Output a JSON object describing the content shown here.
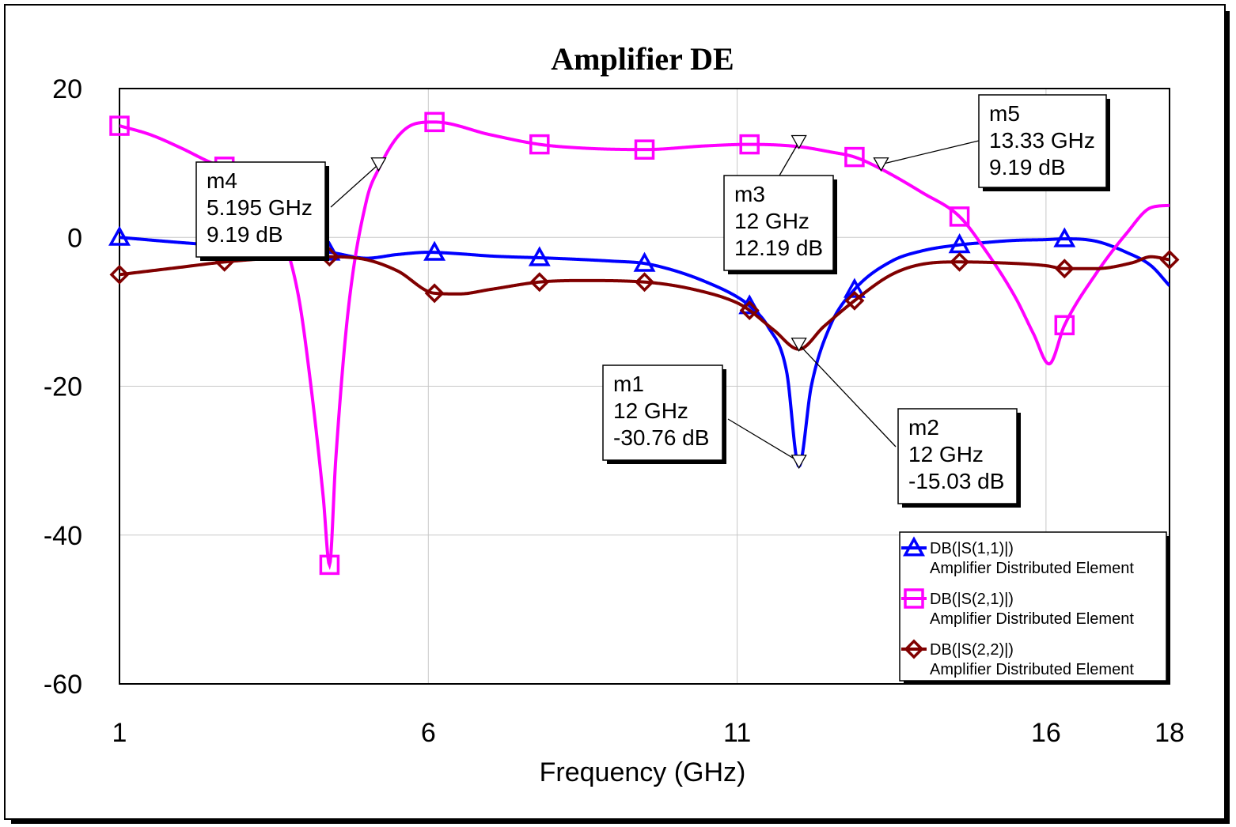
{
  "chart_data": {
    "type": "line",
    "title": "Amplifier DE",
    "xlabel": "Frequency (GHz)",
    "ylabel": "",
    "xlim": [
      1,
      18
    ],
    "ylim": [
      -60,
      20
    ],
    "xticks": [
      1,
      6,
      11,
      16,
      18
    ],
    "yticks": [
      20,
      0,
      -20,
      -40,
      -60
    ],
    "grid": true,
    "legend_position": "bottom-right",
    "series": [
      {
        "name": "DB(|S(1,1)|)",
        "subname": "Amplifier Distributed Element",
        "color": "#0000ff",
        "marker": "triangle",
        "markers_x": [
          1,
          2.7,
          4.4,
          6.1,
          7.8,
          9.5,
          11.2,
          12.9,
          14.6,
          16.3
        ],
        "x": [
          1,
          2,
          3,
          4,
          4.4,
          5,
          5.5,
          6,
          6.5,
          7,
          8,
          9,
          9.5,
          10,
          10.5,
          11,
          11.2,
          11.5,
          11.8,
          12,
          12.2,
          12.5,
          12.9,
          13.5,
          14,
          14.6,
          15,
          15.5,
          16,
          16.3,
          16.8,
          17.3,
          17.7,
          18
        ],
        "y": [
          0,
          -0.7,
          -1.3,
          -1.8,
          -2,
          -2.8,
          -2.3,
          -2,
          -2.2,
          -2.5,
          -2.8,
          -3.2,
          -3.5,
          -4.5,
          -6,
          -8,
          -9.2,
          -12,
          -18,
          -30.76,
          -20,
          -12,
          -7,
          -3.2,
          -1.8,
          -1,
          -0.7,
          -0.4,
          -0.3,
          -0.2,
          -0.5,
          -2,
          -3.8,
          -6.5
        ]
      },
      {
        "name": "DB(|S(2,1)|)",
        "subname": "Amplifier Distributed Element",
        "color": "#ff00ff",
        "marker": "square",
        "markers_x": [
          1,
          2.7,
          4.4,
          6.1,
          7.8,
          9.5,
          11.2,
          12.9,
          14.6,
          16.3
        ],
        "x": [
          1,
          1.5,
          2,
          2.5,
          2.7,
          3.2,
          3.6,
          3.9,
          4.1,
          4.3,
          4.4,
          4.5,
          4.7,
          5,
          5.195,
          5.5,
          5.8,
          6.1,
          7,
          7.8,
          8.5,
          9.5,
          10.5,
          11.2,
          12,
          12.5,
          12.9,
          13.33,
          14,
          14.6,
          15,
          15.5,
          15.8,
          16.05,
          16.3,
          16.8,
          17.3,
          17.7,
          18
        ],
        "y": [
          15,
          13.8,
          12,
          10,
          9.5,
          6,
          1,
          -8,
          -20,
          -35,
          -44,
          -30,
          -10,
          5,
          9.19,
          13.5,
          15.3,
          15.5,
          13.8,
          12.5,
          12,
          11.8,
          12.3,
          12.5,
          12.19,
          11.5,
          10.8,
          9.19,
          6,
          2.8,
          -1.5,
          -8,
          -13,
          -17,
          -11.8,
          -5,
          0.5,
          4,
          4.3
        ]
      },
      {
        "name": "DB(|S(2,2)|)",
        "subname": "Amplifier Distributed Element",
        "color": "#800000",
        "marker": "diamond",
        "markers_x": [
          1,
          2.7,
          4.4,
          6.1,
          7.8,
          9.5,
          11.2,
          12.9,
          14.6,
          16.3,
          18
        ],
        "x": [
          1,
          2,
          2.7,
          3.5,
          4.4,
          5,
          5.5,
          6.1,
          6.5,
          7,
          7.8,
          8.5,
          9.5,
          10.3,
          11,
          11.2,
          11.6,
          12,
          12.4,
          12.9,
          13.5,
          14,
          14.6,
          15.2,
          16,
          16.3,
          16.8,
          17.4,
          17.7,
          18
        ],
        "y": [
          -5,
          -4,
          -3.3,
          -2.8,
          -2.6,
          -3,
          -4.5,
          -7.5,
          -7.6,
          -7,
          -6,
          -5.8,
          -6,
          -7,
          -8.8,
          -9.8,
          -12.5,
          -15.03,
          -12,
          -8.5,
          -5,
          -3.6,
          -3.3,
          -3.4,
          -3.8,
          -4.2,
          -4.2,
          -3.4,
          -2.6,
          -3
        ]
      }
    ],
    "markers": [
      {
        "name": "m1",
        "freq": "12 GHz",
        "value": "-30.76 dB",
        "x": 12,
        "y": -30.76
      },
      {
        "name": "m2",
        "freq": "12 GHz",
        "value": "-15.03 dB",
        "x": 12,
        "y": -15.03
      },
      {
        "name": "m3",
        "freq": "12 GHz",
        "value": "12.19 dB",
        "x": 12,
        "y": 12.19
      },
      {
        "name": "m4",
        "freq": "5.195 GHz",
        "value": "9.19 dB",
        "x": 5.195,
        "y": 9.19
      },
      {
        "name": "m5",
        "freq": "13.33 GHz",
        "value": "9.19 dB",
        "x": 13.33,
        "y": 9.19
      }
    ]
  }
}
